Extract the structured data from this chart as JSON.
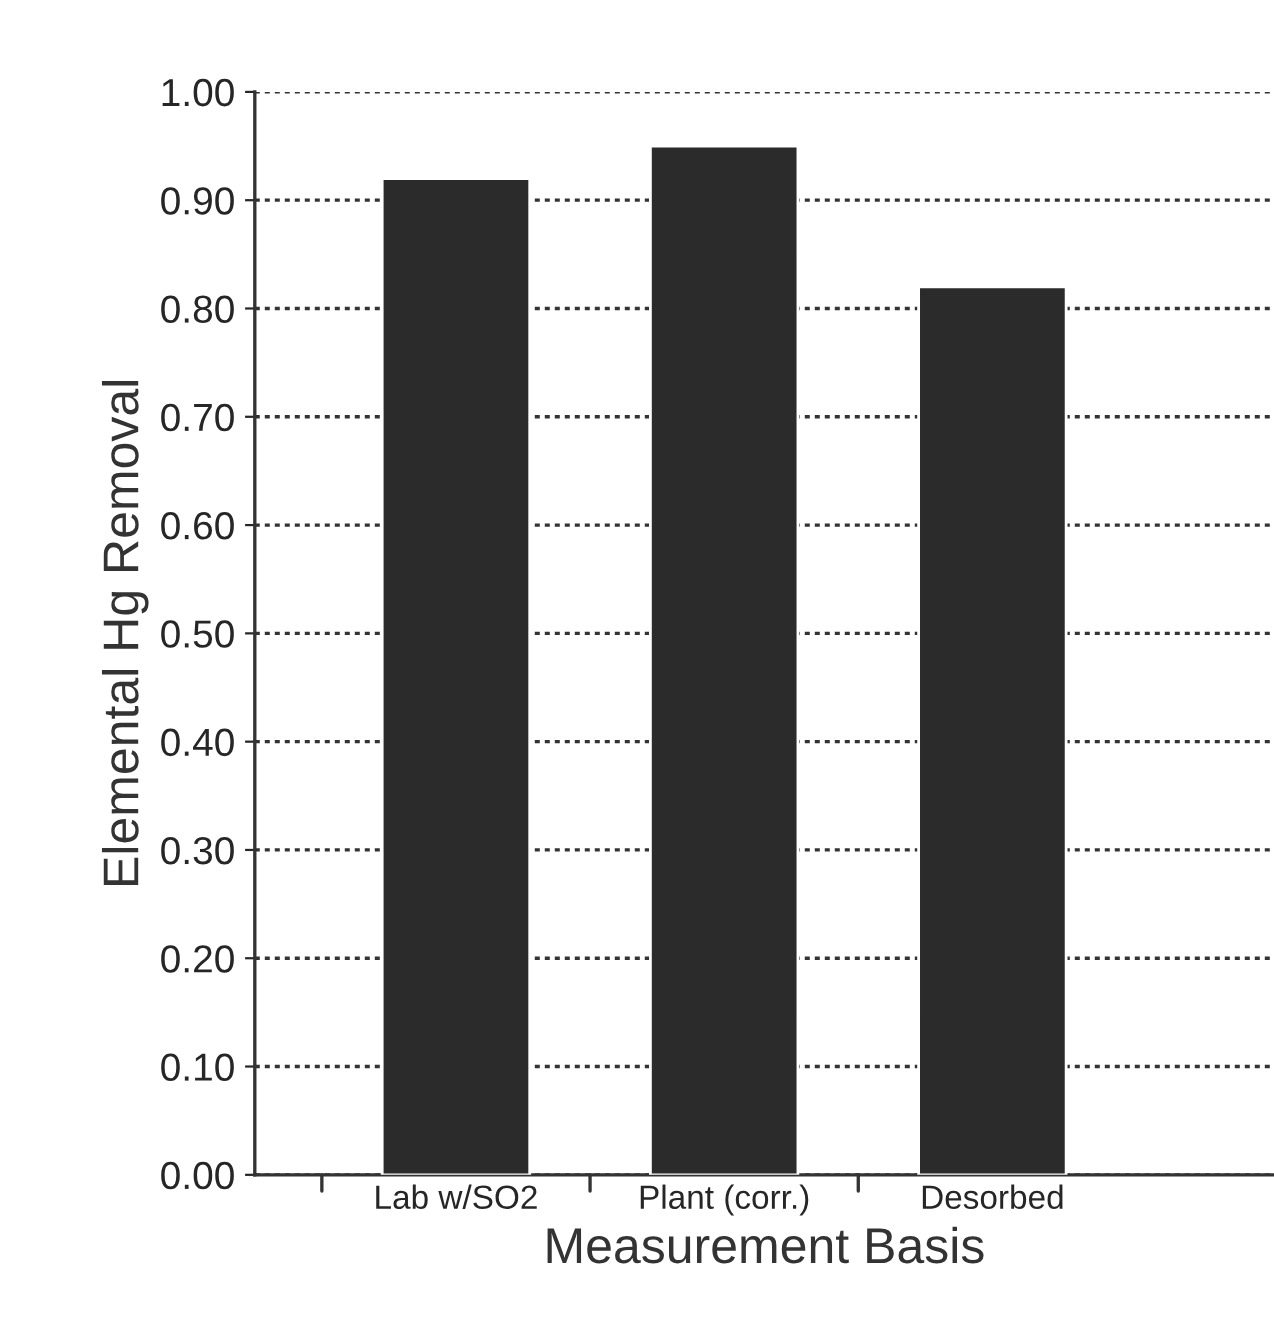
{
  "chart_data": {
    "type": "bar",
    "xlabel": "Measurement Basis",
    "ylabel": "Elemental Hg Removal",
    "categories": [
      "Lab w/SO2",
      "Plant (corr.)",
      "Desorbed"
    ],
    "values": [
      0.92,
      0.95,
      0.82
    ],
    "color": "#2b2b2b",
    "ylim": [
      0,
      1.0
    ],
    "yticks": [
      {
        "value": 0,
        "label": "0.00"
      },
      {
        "value": 0.1,
        "label": "0.10"
      },
      {
        "value": 0.2,
        "label": "0.20"
      },
      {
        "value": 0.3,
        "label": "0.30"
      },
      {
        "value": 0.4,
        "label": "0.40"
      },
      {
        "value": 0.5,
        "label": "0.50"
      },
      {
        "value": 0.6,
        "label": "0.60"
      },
      {
        "value": 0.7,
        "label": "0.70"
      },
      {
        "value": 0.8,
        "label": "0.80"
      },
      {
        "value": 0.9,
        "label": "0.90"
      },
      {
        "value": 1.0,
        "label": "1.00"
      }
    ],
    "grid": "y"
  }
}
